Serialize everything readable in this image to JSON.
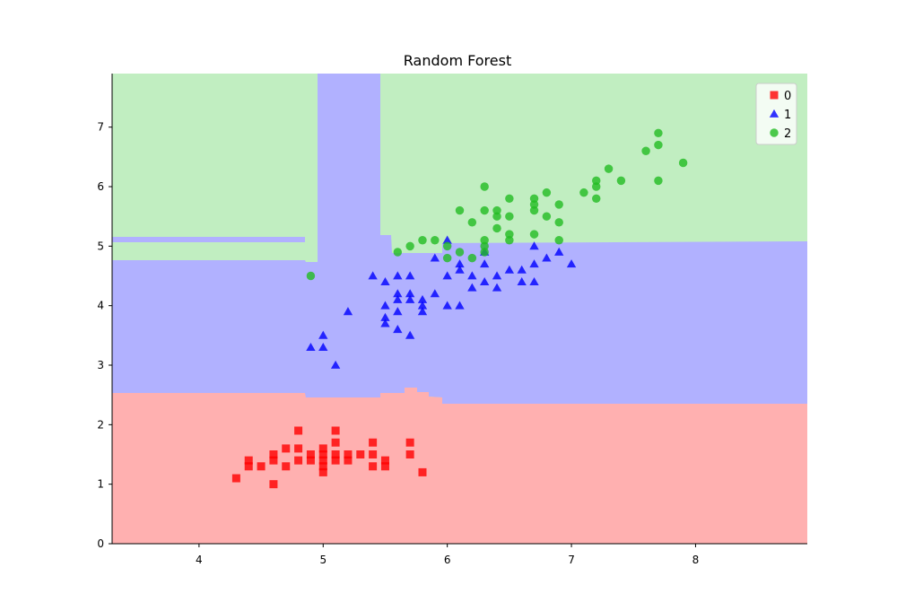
{
  "chart_data": {
    "type": "scatter",
    "title": "Random Forest",
    "xlabel": "",
    "ylabel": "",
    "xlim": [
      3.3,
      8.9
    ],
    "ylim": [
      0,
      7.9
    ],
    "xticks": [
      4,
      5,
      6,
      7,
      8
    ],
    "yticks": [
      0,
      1,
      2,
      3,
      4,
      5,
      6,
      7
    ],
    "xtick_labels": [
      "4",
      "5",
      "6",
      "7",
      "8"
    ],
    "ytick_labels": [
      "0",
      "1",
      "2",
      "3",
      "4",
      "5",
      "6",
      "7"
    ],
    "grid": false,
    "legend_position": "top-right",
    "regions": [
      {
        "class": "0",
        "color": "#ffb0b0"
      },
      {
        "class": "1",
        "color": "#b1b1ff"
      },
      {
        "class": "2",
        "color": "#c1eec1"
      }
    ],
    "series": [
      {
        "name": "0",
        "marker": "square",
        "color": "#ff0000",
        "points": [
          [
            4.3,
            1.1
          ],
          [
            4.4,
            1.3
          ],
          [
            4.4,
            1.4
          ],
          [
            4.5,
            1.3
          ],
          [
            4.6,
            1.0
          ],
          [
            4.6,
            1.4
          ],
          [
            4.6,
            1.5
          ],
          [
            4.7,
            1.3
          ],
          [
            4.7,
            1.6
          ],
          [
            4.8,
            1.4
          ],
          [
            4.8,
            1.6
          ],
          [
            4.8,
            1.9
          ],
          [
            4.9,
            1.4
          ],
          [
            4.9,
            1.5
          ],
          [
            5.0,
            1.2
          ],
          [
            5.0,
            1.3
          ],
          [
            5.0,
            1.4
          ],
          [
            5.0,
            1.5
          ],
          [
            5.0,
            1.6
          ],
          [
            5.1,
            1.4
          ],
          [
            5.1,
            1.5
          ],
          [
            5.1,
            1.7
          ],
          [
            5.1,
            1.9
          ],
          [
            5.2,
            1.4
          ],
          [
            5.2,
            1.5
          ],
          [
            5.3,
            1.5
          ],
          [
            5.4,
            1.3
          ],
          [
            5.4,
            1.5
          ],
          [
            5.4,
            1.7
          ],
          [
            5.5,
            1.3
          ],
          [
            5.5,
            1.4
          ],
          [
            5.7,
            1.5
          ],
          [
            5.7,
            1.7
          ],
          [
            5.8,
            1.2
          ]
        ]
      },
      {
        "name": "1",
        "marker": "triangle",
        "color": "#0000ff",
        "points": [
          [
            4.9,
            3.3
          ],
          [
            5.0,
            3.3
          ],
          [
            5.0,
            3.5
          ],
          [
            5.1,
            3.0
          ],
          [
            5.2,
            3.9
          ],
          [
            5.4,
            4.5
          ],
          [
            5.5,
            3.7
          ],
          [
            5.5,
            3.8
          ],
          [
            5.5,
            4.0
          ],
          [
            5.5,
            4.4
          ],
          [
            5.6,
            3.6
          ],
          [
            5.6,
            3.9
          ],
          [
            5.6,
            4.1
          ],
          [
            5.6,
            4.2
          ],
          [
            5.6,
            4.5
          ],
          [
            5.7,
            3.5
          ],
          [
            5.7,
            4.1
          ],
          [
            5.7,
            4.2
          ],
          [
            5.7,
            4.5
          ],
          [
            5.8,
            3.9
          ],
          [
            5.8,
            4.0
          ],
          [
            5.8,
            4.1
          ],
          [
            5.9,
            4.2
          ],
          [
            5.9,
            4.8
          ],
          [
            6.0,
            4.0
          ],
          [
            6.0,
            4.5
          ],
          [
            6.0,
            5.1
          ],
          [
            6.1,
            4.0
          ],
          [
            6.1,
            4.6
          ],
          [
            6.1,
            4.7
          ],
          [
            6.2,
            4.3
          ],
          [
            6.2,
            4.5
          ],
          [
            6.3,
            4.4
          ],
          [
            6.3,
            4.7
          ],
          [
            6.3,
            4.9
          ],
          [
            6.4,
            4.3
          ],
          [
            6.4,
            4.5
          ],
          [
            6.5,
            4.6
          ],
          [
            6.6,
            4.4
          ],
          [
            6.6,
            4.6
          ],
          [
            6.7,
            4.4
          ],
          [
            6.7,
            4.7
          ],
          [
            6.7,
            5.0
          ],
          [
            6.8,
            4.8
          ],
          [
            6.9,
            4.9
          ],
          [
            7.0,
            4.7
          ]
        ]
      },
      {
        "name": "2",
        "marker": "circle",
        "color": "#22bb22",
        "points": [
          [
            4.9,
            4.5
          ],
          [
            5.6,
            4.9
          ],
          [
            5.7,
            5.0
          ],
          [
            5.8,
            5.1
          ],
          [
            5.9,
            5.1
          ],
          [
            6.0,
            4.8
          ],
          [
            6.0,
            5.0
          ],
          [
            6.1,
            4.9
          ],
          [
            6.1,
            5.6
          ],
          [
            6.2,
            4.8
          ],
          [
            6.2,
            5.4
          ],
          [
            6.3,
            4.9
          ],
          [
            6.3,
            5.0
          ],
          [
            6.3,
            5.1
          ],
          [
            6.3,
            5.6
          ],
          [
            6.3,
            6.0
          ],
          [
            6.4,
            5.3
          ],
          [
            6.4,
            5.5
          ],
          [
            6.4,
            5.6
          ],
          [
            6.5,
            5.1
          ],
          [
            6.5,
            5.2
          ],
          [
            6.5,
            5.5
          ],
          [
            6.5,
            5.8
          ],
          [
            6.7,
            5.2
          ],
          [
            6.7,
            5.6
          ],
          [
            6.7,
            5.7
          ],
          [
            6.7,
            5.8
          ],
          [
            6.8,
            5.5
          ],
          [
            6.8,
            5.9
          ],
          [
            6.9,
            5.1
          ],
          [
            6.9,
            5.4
          ],
          [
            6.9,
            5.7
          ],
          [
            7.1,
            5.9
          ],
          [
            7.2,
            5.8
          ],
          [
            7.2,
            6.0
          ],
          [
            7.2,
            6.1
          ],
          [
            7.3,
            6.3
          ],
          [
            7.4,
            6.1
          ],
          [
            7.6,
            6.6
          ],
          [
            7.7,
            6.1
          ],
          [
            7.7,
            6.7
          ],
          [
            7.7,
            6.9
          ],
          [
            7.9,
            6.4
          ]
        ]
      }
    ]
  }
}
